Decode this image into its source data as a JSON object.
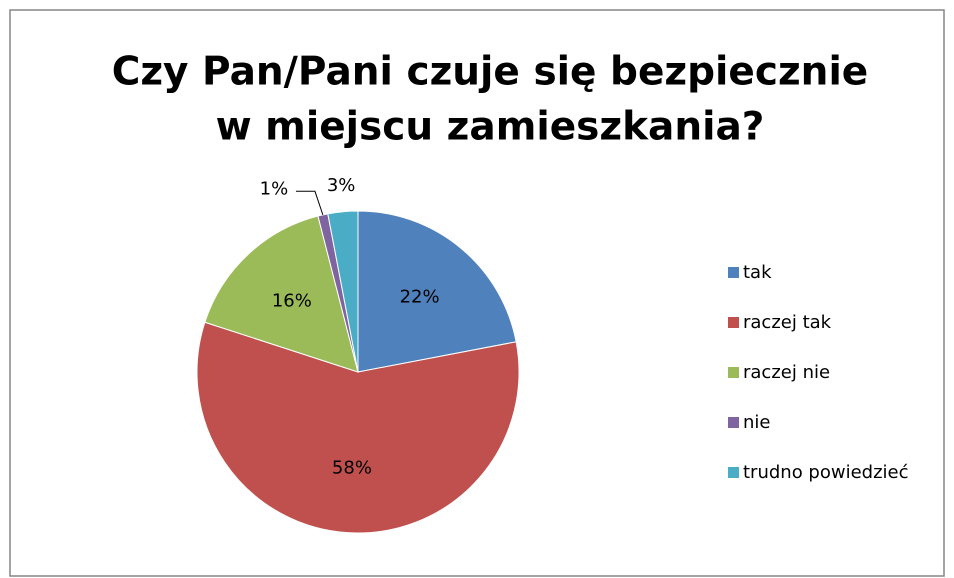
{
  "chart_data": {
    "type": "pie",
    "title": [
      "Czy Pan/Pani czuje się  bezpiecznie",
      "w miejscu zamieszkania?"
    ],
    "categories": [
      "tak",
      "raczej tak",
      "raczej nie",
      "nie",
      "trudno powiedzieć"
    ],
    "values": [
      22,
      58,
      16,
      1,
      3
    ],
    "value_labels": [
      "22%",
      "58%",
      "16%",
      "1%",
      "3%"
    ],
    "colors": [
      "#4f81bd",
      "#c0504d",
      "#9bbb59",
      "#8064a2",
      "#4bacc6"
    ],
    "legend": "right"
  }
}
